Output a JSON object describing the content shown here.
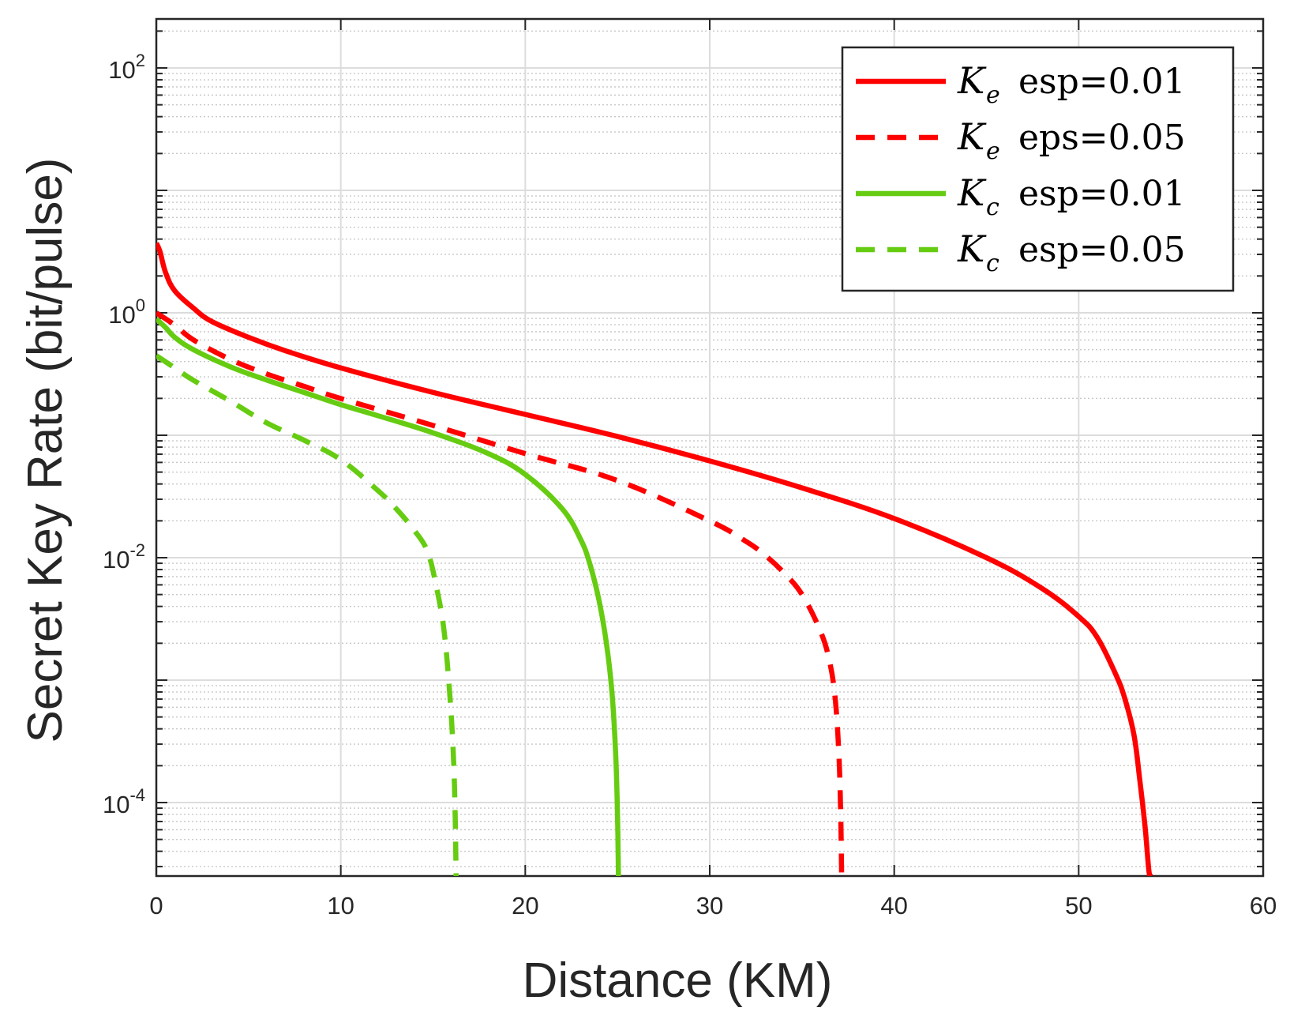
{
  "chart_data": {
    "type": "line",
    "title": "",
    "xlabel": "Distance (KM)",
    "ylabel": "Secret Key Rate (bit/pulse)",
    "xlim": [
      0,
      60
    ],
    "ylim_log10": [
      -4.6,
      2.4
    ],
    "yscale": "log",
    "grid": true,
    "minor_grid": true,
    "legend_position": "top-right",
    "x_ticks": [
      "0",
      "10",
      "20",
      "30",
      "40",
      "50",
      "60"
    ],
    "y_ticks": [
      {
        "base": "10",
        "exp": "-4",
        "log10": -4
      },
      {
        "base": "10",
        "exp": "-2",
        "log10": -2
      },
      {
        "base": "10",
        "exp": "0",
        "log10": 0
      },
      {
        "base": "10",
        "exp": "2",
        "log10": 2
      }
    ],
    "series": [
      {
        "name": "Ke esp=0.01",
        "symbol": "K",
        "subscript": "e",
        "label": "esp=0.01",
        "color": "#ff0000",
        "dash": "solid",
        "x": [
          0,
          0.2,
          0.5,
          1,
          2,
          3,
          5,
          7,
          10,
          15,
          20,
          25,
          30,
          35,
          40,
          45,
          48,
          50,
          51,
          52,
          52.5,
          53,
          53.3,
          53.6,
          53.8,
          53.9
        ],
        "log10": [
          0.57,
          0.5,
          0.33,
          0.18,
          0.04,
          -0.07,
          -0.2,
          -0.31,
          -0.45,
          -0.65,
          -0.83,
          -1.01,
          -1.21,
          -1.43,
          -1.68,
          -2.0,
          -2.25,
          -2.48,
          -2.65,
          -2.95,
          -3.15,
          -3.45,
          -3.8,
          -4.2,
          -4.55,
          -4.6
        ]
      },
      {
        "name": "Ke eps=0.05",
        "symbol": "K",
        "subscript": "e",
        "label": "eps=0.05",
        "color": "#ff0000",
        "dash": "dashed",
        "x": [
          0,
          1,
          2,
          4,
          6,
          8,
          10,
          15,
          20,
          25,
          30,
          32,
          33,
          34,
          35,
          36,
          36.5,
          36.8,
          37,
          37.1,
          37.15
        ],
        "log10": [
          0.0,
          -0.1,
          -0.22,
          -0.38,
          -0.5,
          -0.6,
          -0.7,
          -0.92,
          -1.15,
          -1.37,
          -1.7,
          -1.87,
          -1.98,
          -2.12,
          -2.3,
          -2.6,
          -2.85,
          -3.15,
          -3.6,
          -4.1,
          -4.6
        ]
      },
      {
        "name": "Kc esp=0.01",
        "symbol": "K",
        "subscript": "c",
        "label": "esp=0.01",
        "color": "#66cc11",
        "dash": "solid",
        "x": [
          0,
          0.5,
          1,
          2,
          4,
          6,
          8,
          10,
          12,
          15,
          18,
          20,
          22,
          23,
          23.5,
          24,
          24.4,
          24.7,
          24.9,
          25.0,
          25.05
        ],
        "log10": [
          -0.05,
          -0.12,
          -0.2,
          -0.3,
          -0.44,
          -0.55,
          -0.65,
          -0.75,
          -0.84,
          -0.98,
          -1.15,
          -1.32,
          -1.6,
          -1.85,
          -2.05,
          -2.35,
          -2.7,
          -3.1,
          -3.6,
          -4.1,
          -4.6
        ]
      },
      {
        "name": "Kc esp=0.05",
        "symbol": "K",
        "subscript": "c",
        "label": "esp=0.05",
        "color": "#66cc11",
        "dash": "dashed",
        "x": [
          0,
          1,
          2,
          4,
          6,
          8,
          10,
          12,
          13,
          14,
          14.7,
          15.2,
          15.6,
          15.9,
          16.1,
          16.2,
          16.25
        ],
        "log10": [
          -0.35,
          -0.45,
          -0.55,
          -0.72,
          -0.9,
          -1.04,
          -1.2,
          -1.45,
          -1.6,
          -1.78,
          -1.95,
          -2.25,
          -2.6,
          -3.1,
          -3.6,
          -4.1,
          -4.6
        ]
      }
    ]
  }
}
